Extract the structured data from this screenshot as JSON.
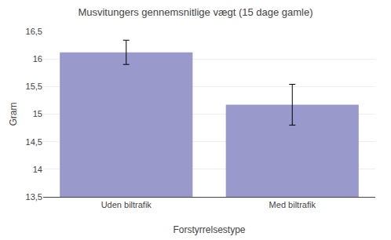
{
  "chart_data": {
    "type": "bar",
    "title": "Musvitungers gennemsnitlige vægt (15 dage gamle)",
    "xlabel": "Forstyrrelsestype",
    "ylabel": "Gram",
    "categories": [
      "Uden biltrafik",
      "Med biltrafik"
    ],
    "values": [
      16.12,
      15.17
    ],
    "errors": [
      0.22,
      0.37
    ],
    "color": "#9999cc",
    "ylim": [
      13.5,
      16.5
    ],
    "yticks": [
      {
        "value": 13.5,
        "label": "13,5"
      },
      14,
      {
        "value": 14.5,
        "label": "14,5"
      },
      15,
      {
        "value": 15.5,
        "label": "15,5"
      },
      16,
      {
        "value": 16.5,
        "label": "16,5"
      }
    ],
    "grid": true
  }
}
